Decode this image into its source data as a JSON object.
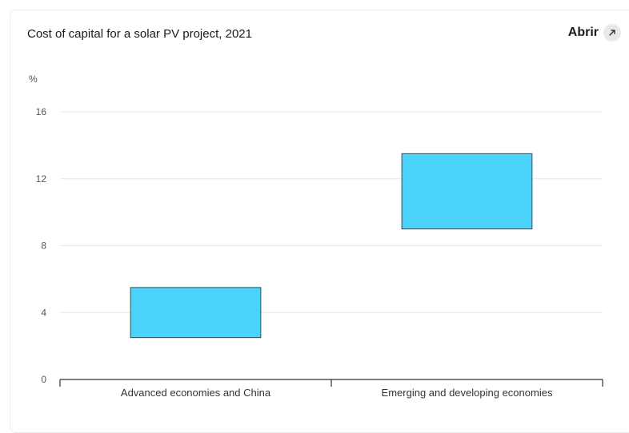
{
  "header": {
    "title": "Cost of capital for a solar PV project, 2021",
    "open_label": "Abrir",
    "open_icon": "expand-arrow-icon"
  },
  "chart_data": {
    "type": "bar",
    "subtype": "floating-range",
    "ylabel": "%",
    "ylim": [
      0,
      16
    ],
    "yticks": [
      "0",
      "4",
      "8",
      "12",
      "16"
    ],
    "categories": [
      "Advanced economies and China",
      "Emerging and developing economies"
    ],
    "series": [
      {
        "low": [
          2.5,
          9.0
        ],
        "high": [
          5.5,
          13.5
        ]
      }
    ],
    "grid": true,
    "colors": {
      "bar": "#4cd3fc",
      "bar_border": "#3a4a52",
      "grid": "#e6e6e6",
      "axis": "#333333"
    }
  }
}
